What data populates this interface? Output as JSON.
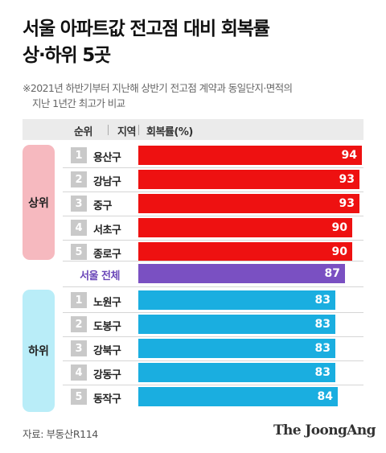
{
  "header": {
    "title_line1": "서울 아파트값 전고점 대비 회복률",
    "title_line2": "상·하위 5곳",
    "note_line1": "※2021년 하반기부터 지난해 상반기 전고점 계약과 동일단지·면적의",
    "note_line2": "지난 1년간 최고가 비교"
  },
  "table_header": {
    "rank": "순위",
    "region": "지역",
    "rate": "회복률(%)"
  },
  "groups": {
    "upper": "상위",
    "lower": "하위"
  },
  "colors": {
    "upper_bar": "#ee1111",
    "total_bar": "#7a50c2",
    "lower_bar": "#1aaee0",
    "upper_group_bg": "#f6b9bf",
    "lower_group_bg": "#b9edf8"
  },
  "chart_data": {
    "type": "bar",
    "orientation": "horizontal",
    "title": "서울 아파트값 전고점 대비 회복률 상·하위 5곳",
    "xlabel": "회복률(%)",
    "upper": [
      {
        "rank": "1",
        "region": "용산구",
        "value": 94
      },
      {
        "rank": "2",
        "region": "강남구",
        "value": 93
      },
      {
        "rank": "3",
        "region": "중구",
        "value": 93
      },
      {
        "rank": "4",
        "region": "서초구",
        "value": 90
      },
      {
        "rank": "5",
        "region": "종로구",
        "value": 90
      }
    ],
    "total": {
      "region": "서울 전체",
      "value": 87
    },
    "lower": [
      {
        "rank": "1",
        "region": "노원구",
        "value": 83
      },
      {
        "rank": "2",
        "region": "도봉구",
        "value": 83
      },
      {
        "rank": "3",
        "region": "강북구",
        "value": 83
      },
      {
        "rank": "4",
        "region": "강동구",
        "value": 83
      },
      {
        "rank": "5",
        "region": "동작구",
        "value": 84
      }
    ]
  },
  "footer": {
    "source": "자료: 부동산R114",
    "logo": "The JoongAng"
  }
}
